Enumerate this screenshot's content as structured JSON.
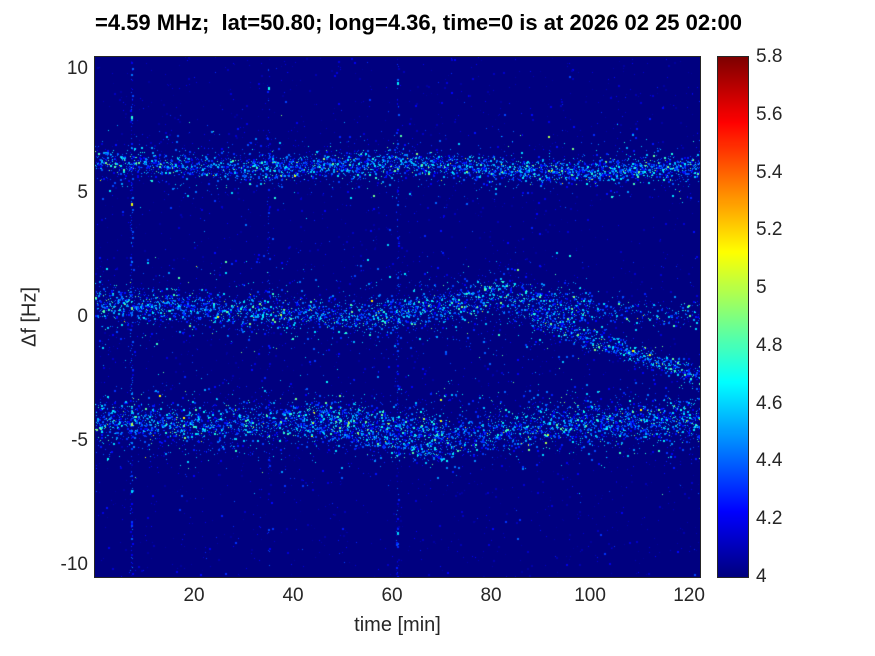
{
  "figure": {
    "background": "#ffffff",
    "axes_color": "#262626",
    "title_color": "#000000",
    "plot_background_color": "#00007f"
  },
  "chart_data": {
    "type": "heatmap",
    "title": "=4.59 MHz;  lat=50.80; long=4.36, time=0 is at 2026 02 25 02:00",
    "xlabel": "time [min]",
    "ylabel": "Δf [Hz]",
    "x_range": [
      0,
      122.2
    ],
    "y_range": [
      -10.5,
      10.5
    ],
    "x_ticks": [
      "20",
      "40",
      "60",
      "80",
      "100",
      "120"
    ],
    "y_ticks": [
      "10",
      "5",
      "0",
      "-5",
      "-10"
    ],
    "colormap": "jet",
    "value_range": [
      4,
      5.8
    ],
    "colorbar_ticks": [
      "4",
      "4.2",
      "4.4",
      "4.6",
      "4.8",
      "5",
      "5.2",
      "5.4",
      "5.6",
      "5.8"
    ],
    "background_value": 4,
    "seed": 20260225,
    "noise": {
      "count": 2600,
      "vmin": 4.05,
      "vmax": 4.4
    },
    "bands": [
      {
        "name": "upper-trace-6Hz",
        "segments": [
          {
            "t0": 0,
            "t1": 30,
            "f0": 6.3,
            "f1": 6.0,
            "width": 0.55,
            "density": 5
          },
          {
            "t0": 30,
            "t1": 62,
            "f0": 6.0,
            "f1": 6.25,
            "width": 0.6,
            "density": 6
          },
          {
            "t0": 62,
            "t1": 92,
            "f0": 6.25,
            "f1": 5.85,
            "width": 0.55,
            "density": 6
          },
          {
            "t0": 92,
            "t1": 122.2,
            "f0": 5.85,
            "f1": 6.05,
            "width": 0.5,
            "density": 7
          },
          {
            "t0": 0,
            "t1": 122.2,
            "f0": 6.2,
            "f1": 6.0,
            "width": 1.4,
            "density": 1.5
          }
        ]
      },
      {
        "name": "center-trace-0Hz",
        "segments": [
          {
            "t0": 0,
            "t1": 25,
            "f0": 0.6,
            "f1": 0.3,
            "width": 0.75,
            "density": 7
          },
          {
            "t0": 25,
            "t1": 55,
            "f0": 0.3,
            "f1": 0.0,
            "width": 0.8,
            "density": 6
          },
          {
            "t0": 55,
            "t1": 80,
            "f0": 0.0,
            "f1": 0.8,
            "width": 0.8,
            "density": 7
          },
          {
            "t0": 80,
            "t1": 100,
            "f0": 0.8,
            "f1": 0.3,
            "width": 0.9,
            "density": 6
          },
          {
            "t0": 100,
            "t1": 122.2,
            "f0": 0.3,
            "f1": 0.1,
            "width": 0.8,
            "density": 2.5
          },
          {
            "t0": 0,
            "t1": 100,
            "f0": 0.4,
            "f1": 0.3,
            "width": 2.4,
            "density": 1.8
          },
          {
            "t0": 88,
            "t1": 105,
            "f0": 0.0,
            "f1": -1.2,
            "width": 0.5,
            "density": 5
          },
          {
            "t0": 105,
            "t1": 122.2,
            "f0": -1.2,
            "f1": -2.4,
            "width": 0.5,
            "density": 6
          }
        ]
      },
      {
        "name": "lower-trace-minus4Hz",
        "segments": [
          {
            "t0": 0,
            "t1": 20,
            "f0": -4.1,
            "f1": -4.4,
            "width": 0.85,
            "density": 7
          },
          {
            "t0": 20,
            "t1": 45,
            "f0": -4.4,
            "f1": -4.0,
            "width": 0.9,
            "density": 6
          },
          {
            "t0": 45,
            "t1": 72,
            "f0": -4.0,
            "f1": -4.9,
            "width": 0.9,
            "density": 8
          },
          {
            "t0": 72,
            "t1": 95,
            "f0": -4.9,
            "f1": -4.3,
            "width": 0.9,
            "density": 6
          },
          {
            "t0": 95,
            "t1": 122.2,
            "f0": -4.3,
            "f1": -4.1,
            "width": 0.85,
            "density": 8
          },
          {
            "t0": 0,
            "t1": 122.2,
            "f0": -4.4,
            "f1": -4.3,
            "width": 2.1,
            "density": 2.5
          },
          {
            "t0": 40,
            "t1": 70,
            "f0": -4.3,
            "f1": -5.6,
            "width": 0.5,
            "density": 3
          }
        ]
      }
    ],
    "streaks": [
      {
        "t": 7.3,
        "density": 0.45,
        "vmin": 4.08,
        "vmax": 4.5
      },
      {
        "t": 35,
        "density": 0.22,
        "vmin": 4.06,
        "vmax": 4.4
      },
      {
        "t": 61,
        "density": 0.4,
        "vmin": 4.08,
        "vmax": 4.45
      }
    ],
    "bright_spots": [
      {
        "t": 7.3,
        "f": 8.1,
        "value": 4.75
      },
      {
        "t": 7.3,
        "f": 4.6,
        "value": 5.1
      },
      {
        "t": 7.3,
        "f": 0.4,
        "value": 4.9
      },
      {
        "t": 7.3,
        "f": -4.3,
        "value": 5.0
      },
      {
        "t": 7.3,
        "f": -7.0,
        "value": 4.6
      },
      {
        "t": 35,
        "f": 9.3,
        "value": 4.7
      },
      {
        "t": 61,
        "f": 9.5,
        "value": 4.65
      },
      {
        "t": 61,
        "f": -8.7,
        "value": 4.6
      }
    ]
  }
}
